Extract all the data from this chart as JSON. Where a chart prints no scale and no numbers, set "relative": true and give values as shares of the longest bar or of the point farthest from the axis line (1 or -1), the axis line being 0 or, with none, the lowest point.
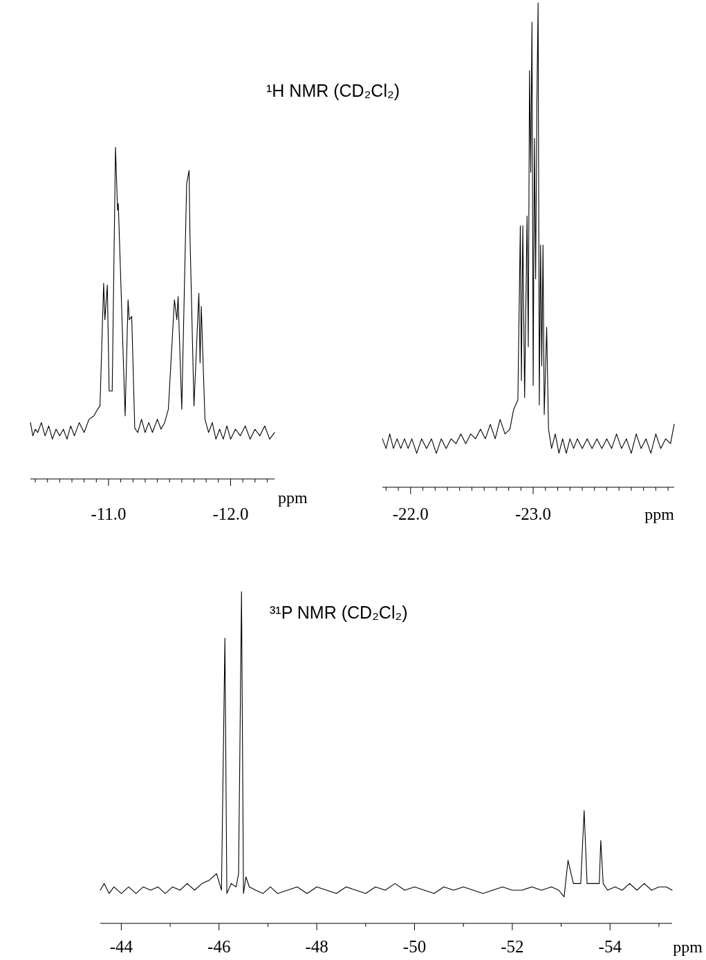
{
  "chart_data": [
    {
      "type": "line",
      "relative": true,
      "tick_labels": "x",
      "title": "¹H NMR (CD₂Cl₂)",
      "xlabel": "ppm",
      "color": "#000000",
      "xlim": [
        -10.36,
        -12.36
      ],
      "xticks": [
        {
          "value": -10.4,
          "label": null
        },
        {
          "value": -10.5,
          "label": null
        },
        {
          "value": -10.6,
          "label": null
        },
        {
          "value": -10.7,
          "label": null
        },
        {
          "value": -10.8,
          "label": null
        },
        {
          "value": -10.9,
          "label": null
        },
        {
          "value": -11.0,
          "label": "-11.0"
        },
        {
          "value": -11.1,
          "label": null
        },
        {
          "value": -11.2,
          "label": null
        },
        {
          "value": -11.3,
          "label": null
        },
        {
          "value": -11.4,
          "label": null
        },
        {
          "value": -11.5,
          "label": null
        },
        {
          "value": -11.6,
          "label": null
        },
        {
          "value": -11.7,
          "label": null
        },
        {
          "value": -11.8,
          "label": null
        },
        {
          "value": -11.9,
          "label": null
        },
        {
          "value": -12.0,
          "label": "-12.0"
        },
        {
          "value": -12.1,
          "label": null
        },
        {
          "value": -12.2,
          "label": null
        },
        {
          "value": -12.3,
          "label": null
        }
      ],
      "x": [
        -10.36,
        -10.38,
        -10.4,
        -10.42,
        -10.45,
        -10.48,
        -10.51,
        -10.54,
        -10.57,
        -10.6,
        -10.63,
        -10.66,
        -10.69,
        -10.72,
        -10.76,
        -10.8,
        -10.84,
        -10.88,
        -10.91,
        -10.93,
        -10.96,
        -10.97,
        -10.99,
        -11.005,
        -11.03,
        -11.057,
        -11.074,
        -11.08,
        -11.136,
        -11.16,
        -11.17,
        -11.19,
        -11.215,
        -11.24,
        -11.27,
        -11.3,
        -11.33,
        -11.36,
        -11.4,
        -11.43,
        -11.46,
        -11.49,
        -11.54,
        -11.56,
        -11.57,
        -11.6,
        -11.64,
        -11.66,
        -11.667,
        -11.7,
        -11.74,
        -11.75,
        -11.76,
        -11.79,
        -11.82,
        -11.85,
        -11.88,
        -11.91,
        -11.94,
        -11.97,
        -12.0,
        -12.04,
        -12.08,
        -12.12,
        -12.16,
        -12.2,
        -12.24,
        -12.28,
        -12.32,
        -12.36
      ],
      "values": [
        0.17,
        0.13,
        0.15,
        0.14,
        0.17,
        0.13,
        0.16,
        0.12,
        0.15,
        0.13,
        0.15,
        0.12,
        0.16,
        0.13,
        0.17,
        0.14,
        0.18,
        0.19,
        0.21,
        0.22,
        0.59,
        0.48,
        0.585,
        0.265,
        0.265,
        1.0,
        0.81,
        0.83,
        0.19,
        0.54,
        0.48,
        0.49,
        0.153,
        0.14,
        0.18,
        0.14,
        0.17,
        0.14,
        0.18,
        0.15,
        0.17,
        0.21,
        0.54,
        0.48,
        0.55,
        0.21,
        0.89,
        0.93,
        0.74,
        0.22,
        0.56,
        0.35,
        0.52,
        0.18,
        0.14,
        0.17,
        0.12,
        0.15,
        0.12,
        0.16,
        0.12,
        0.15,
        0.13,
        0.16,
        0.12,
        0.15,
        0.13,
        0.16,
        0.12,
        0.14
      ]
    },
    {
      "type": "line",
      "relative": true,
      "tick_labels": "x",
      "xlabel": "ppm",
      "color": "#000000",
      "xlim": [
        -21.77,
        -24.15
      ],
      "xticks": [
        {
          "value": -21.8,
          "label": null
        },
        {
          "value": -21.9,
          "label": null
        },
        {
          "value": -22.0,
          "label": "-22.0"
        },
        {
          "value": -22.1,
          "label": null
        },
        {
          "value": -22.2,
          "label": null
        },
        {
          "value": -22.3,
          "label": null
        },
        {
          "value": -22.4,
          "label": null
        },
        {
          "value": -22.5,
          "label": null
        },
        {
          "value": -22.6,
          "label": null
        },
        {
          "value": -22.7,
          "label": null
        },
        {
          "value": -22.8,
          "label": null
        },
        {
          "value": -22.9,
          "label": null
        },
        {
          "value": -23.0,
          "label": "-23.0"
        },
        {
          "value": -23.1,
          "label": null
        },
        {
          "value": -23.2,
          "label": null
        },
        {
          "value": -23.3,
          "label": null
        },
        {
          "value": -23.4,
          "label": null
        },
        {
          "value": -23.5,
          "label": null
        },
        {
          "value": -23.6,
          "label": null
        },
        {
          "value": -23.7,
          "label": null
        },
        {
          "value": -23.8,
          "label": null
        },
        {
          "value": -23.9,
          "label": null
        },
        {
          "value": -24.0,
          "label": null
        },
        {
          "value": -24.1,
          "label": null
        }
      ],
      "x": [
        -21.77,
        -21.8,
        -21.83,
        -21.86,
        -21.89,
        -21.92,
        -21.95,
        -21.98,
        -22.01,
        -22.05,
        -22.09,
        -22.13,
        -22.17,
        -22.21,
        -22.25,
        -22.29,
        -22.33,
        -22.37,
        -22.41,
        -22.45,
        -22.49,
        -22.53,
        -22.57,
        -22.61,
        -22.65,
        -22.69,
        -22.73,
        -22.77,
        -22.81,
        -22.84,
        -22.875,
        -22.895,
        -22.904,
        -22.915,
        -22.93,
        -22.95,
        -22.96,
        -22.97,
        -22.98,
        -22.99,
        -23.0,
        -23.01,
        -23.02,
        -23.03,
        -23.04,
        -23.05,
        -23.06,
        -23.07,
        -23.08,
        -23.09,
        -23.11,
        -23.125,
        -23.15,
        -23.18,
        -23.21,
        -23.24,
        -23.27,
        -23.3,
        -23.33,
        -23.36,
        -23.4,
        -23.44,
        -23.48,
        -23.52,
        -23.56,
        -23.6,
        -23.64,
        -23.68,
        -23.72,
        -23.76,
        -23.8,
        -23.84,
        -23.88,
        -23.92,
        -23.96,
        -24.0,
        -24.04,
        -24.08,
        -24.12,
        -24.15
      ],
      "values": [
        0.1,
        0.08,
        0.11,
        0.08,
        0.1,
        0.08,
        0.1,
        0.08,
        0.1,
        0.07,
        0.1,
        0.08,
        0.1,
        0.07,
        0.1,
        0.08,
        0.1,
        0.09,
        0.11,
        0.09,
        0.11,
        0.1,
        0.12,
        0.1,
        0.13,
        0.1,
        0.14,
        0.11,
        0.12,
        0.16,
        0.18,
        0.54,
        0.22,
        0.54,
        0.185,
        0.56,
        0.29,
        0.86,
        0.65,
        0.96,
        0.21,
        0.72,
        0.43,
        0.79,
        1.0,
        0.17,
        0.5,
        0.25,
        0.5,
        0.15,
        0.33,
        0.12,
        0.08,
        0.11,
        0.07,
        0.1,
        0.07,
        0.1,
        0.08,
        0.1,
        0.08,
        0.1,
        0.08,
        0.1,
        0.08,
        0.1,
        0.08,
        0.11,
        0.08,
        0.1,
        0.07,
        0.11,
        0.08,
        0.1,
        0.07,
        0.11,
        0.08,
        0.1,
        0.09,
        0.13
      ]
    },
    {
      "type": "line",
      "relative": true,
      "tick_labels": "x",
      "title": "³¹P NMR (CD₂Cl₂)",
      "xlabel": "ppm",
      "color": "#000000",
      "xlim": [
        -43.57,
        -55.27
      ],
      "xticks": [
        {
          "value": -44,
          "label": "-44"
        },
        {
          "value": -45,
          "label": null
        },
        {
          "value": -46,
          "label": "-46"
        },
        {
          "value": -47,
          "label": null
        },
        {
          "value": -48,
          "label": "-48"
        },
        {
          "value": -49,
          "label": null
        },
        {
          "value": -50,
          "label": "-50"
        },
        {
          "value": -51,
          "label": null
        },
        {
          "value": -52,
          "label": "-52"
        },
        {
          "value": -53,
          "label": null
        },
        {
          "value": -54,
          "label": "-54"
        },
        {
          "value": -55,
          "label": null
        }
      ],
      "x": [
        -43.57,
        -43.65,
        -43.75,
        -43.85,
        -44.0,
        -44.15,
        -44.3,
        -44.45,
        -44.6,
        -44.75,
        -44.9,
        -45.05,
        -45.2,
        -45.35,
        -45.5,
        -45.65,
        -45.8,
        -45.95,
        -46.05,
        -46.12,
        -46.16,
        -46.25,
        -46.35,
        -46.4,
        -46.46,
        -46.5,
        -46.55,
        -46.62,
        -46.75,
        -46.9,
        -47.05,
        -47.2,
        -47.4,
        -47.6,
        -47.8,
        -48.0,
        -48.2,
        -48.4,
        -48.6,
        -48.8,
        -49.0,
        -49.2,
        -49.4,
        -49.6,
        -49.8,
        -50.0,
        -50.2,
        -50.4,
        -50.6,
        -50.8,
        -51.0,
        -51.2,
        -51.4,
        -51.6,
        -51.8,
        -52.0,
        -52.2,
        -52.4,
        -52.6,
        -52.8,
        -52.95,
        -53.06,
        -53.14,
        -53.25,
        -53.4,
        -53.47,
        -53.53,
        -53.65,
        -53.78,
        -53.81,
        -53.86,
        -53.95,
        -54.1,
        -54.25,
        -54.4,
        -54.55,
        -54.7,
        -54.85,
        -55.0,
        -55.15,
        -55.27
      ],
      "values": [
        0.1,
        0.12,
        0.09,
        0.11,
        0.09,
        0.11,
        0.09,
        0.11,
        0.1,
        0.11,
        0.09,
        0.11,
        0.1,
        0.12,
        0.1,
        0.12,
        0.13,
        0.15,
        0.1,
        0.86,
        0.09,
        0.12,
        0.11,
        0.15,
        1.0,
        0.09,
        0.14,
        0.11,
        0.1,
        0.09,
        0.11,
        0.09,
        0.1,
        0.11,
        0.09,
        0.11,
        0.1,
        0.09,
        0.11,
        0.1,
        0.09,
        0.11,
        0.1,
        0.12,
        0.1,
        0.11,
        0.1,
        0.09,
        0.11,
        0.1,
        0.11,
        0.1,
        0.09,
        0.1,
        0.11,
        0.1,
        0.1,
        0.11,
        0.1,
        0.11,
        0.1,
        0.08,
        0.19,
        0.12,
        0.12,
        0.34,
        0.12,
        0.12,
        0.12,
        0.25,
        0.12,
        0.1,
        0.11,
        0.1,
        0.12,
        0.1,
        0.12,
        0.1,
        0.11,
        0.11,
        0.1
      ]
    }
  ]
}
